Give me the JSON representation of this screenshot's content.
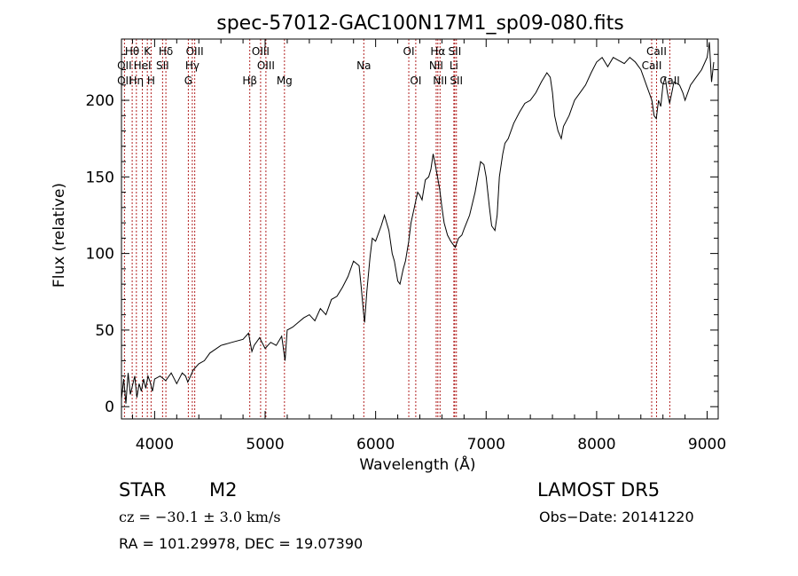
{
  "chart_data": {
    "type": "line",
    "title": "spec-57012-GAC100N17M1_sp09-080.fits",
    "xlabel": "Wavelength (Å)",
    "ylabel": "Flux (relative)",
    "xlim": [
      3700,
      9100
    ],
    "ylim": [
      -8,
      240
    ],
    "xticks": [
      4000,
      5000,
      6000,
      7000,
      8000,
      9000
    ],
    "yticks": [
      0,
      50,
      100,
      150,
      200
    ],
    "grid": false,
    "line_color": "#000000",
    "marker_color": "#b22222",
    "series": [
      {
        "x": [
          3700,
          3720,
          3740,
          3760,
          3780,
          3800,
          3820,
          3840,
          3860,
          3880,
          3900,
          3920,
          3940,
          3960,
          3980,
          4000,
          4050,
          4100,
          4150,
          4200,
          4250,
          4280,
          4300,
          4350,
          4400,
          4450,
          4500,
          4600,
          4700,
          4800,
          4850,
          4880,
          4900,
          4950,
          5000,
          5050,
          5100,
          5150,
          5180,
          5200,
          5250,
          5300,
          5350,
          5400,
          5450,
          5500,
          5550,
          5600,
          5650,
          5700,
          5750,
          5800,
          5850,
          5870,
          5890,
          5900,
          5920,
          5950,
          5970,
          6000,
          6020,
          6050,
          6080,
          6100,
          6120,
          6150,
          6170,
          6200,
          6220,
          6250,
          6270,
          6300,
          6320,
          6350,
          6380,
          6400,
          6420,
          6450,
          6480,
          6500,
          6520,
          6540,
          6560,
          6580,
          6600,
          6620,
          6650,
          6680,
          6700,
          6720,
          6750,
          6780,
          6800,
          6850,
          6900,
          6950,
          6980,
          7000,
          7030,
          7050,
          7080,
          7100,
          7120,
          7150,
          7170,
          7200,
          7250,
          7300,
          7350,
          7400,
          7450,
          7500,
          7550,
          7580,
          7600,
          7620,
          7650,
          7680,
          7700,
          7750,
          7800,
          7850,
          7900,
          7950,
          8000,
          8050,
          8100,
          8150,
          8200,
          8250,
          8300,
          8350,
          8400,
          8450,
          8500,
          8520,
          8540,
          8560,
          8580,
          8600,
          8620,
          8640,
          8660,
          8680,
          8700,
          8750,
          8780,
          8800,
          8850,
          8900,
          8950,
          9000,
          9020,
          9040,
          9060
        ],
        "y": [
          5,
          18,
          2,
          22,
          8,
          14,
          20,
          6,
          15,
          10,
          18,
          12,
          20,
          16,
          10,
          18,
          20,
          17,
          22,
          15,
          22,
          20,
          16,
          24,
          28,
          30,
          35,
          40,
          42,
          44,
          48,
          36,
          40,
          45,
          38,
          42,
          40,
          46,
          30,
          50,
          52,
          55,
          58,
          60,
          56,
          64,
          60,
          70,
          72,
          78,
          85,
          95,
          92,
          78,
          62,
          55,
          75,
          98,
          110,
          108,
          112,
          118,
          125,
          120,
          115,
          100,
          95,
          82,
          80,
          90,
          95,
          108,
          120,
          130,
          140,
          138,
          135,
          148,
          150,
          155,
          165,
          158,
          150,
          142,
          130,
          120,
          112,
          108,
          106,
          104,
          110,
          112,
          116,
          125,
          140,
          160,
          158,
          150,
          130,
          118,
          115,
          125,
          150,
          165,
          172,
          175,
          185,
          192,
          198,
          200,
          205,
          212,
          218,
          215,
          205,
          190,
          180,
          175,
          183,
          190,
          200,
          205,
          210,
          218,
          225,
          228,
          222,
          228,
          226,
          224,
          228,
          225,
          220,
          210,
          200,
          190,
          188,
          200,
          196,
          210,
          215,
          205,
          198,
          205,
          212,
          210,
          205,
          200,
          210,
          215,
          220,
          228,
          238,
          212,
          225
        ]
      }
    ],
    "line_markers": [
      {
        "label": "Hθ",
        "x": 3797,
        "row": 1
      },
      {
        "label": "OII",
        "x": 3727,
        "row": 2
      },
      {
        "label": "OII",
        "x": 3727,
        "row": 3
      },
      {
        "label": "K",
        "x": 3934,
        "row": 1
      },
      {
        "label": "HeI",
        "x": 3889,
        "row": 2
      },
      {
        "label": "Hη",
        "x": 3835,
        "row": 3
      },
      {
        "label": "Hδ",
        "x": 4102,
        "row": 1
      },
      {
        "label": "SII",
        "x": 4072,
        "row": 2
      },
      {
        "label": "H",
        "x": 3968,
        "row": 3
      },
      {
        "label": "OIII",
        "x": 4363,
        "row": 1
      },
      {
        "label": "Hγ",
        "x": 4341,
        "row": 2
      },
      {
        "label": "G",
        "x": 4305,
        "row": 3
      },
      {
        "label": "OIII",
        "x": 4959,
        "row": 1
      },
      {
        "label": "OIII",
        "x": 5007,
        "row": 2
      },
      {
        "label": "Hβ",
        "x": 4861,
        "row": 3
      },
      {
        "label": "Mg",
        "x": 5175,
        "row": 3
      },
      {
        "label": "Na",
        "x": 5893,
        "row": 2
      },
      {
        "label": "OI",
        "x": 6300,
        "row": 1
      },
      {
        "label": "OI",
        "x": 6363,
        "row": 3
      },
      {
        "label": "Hα",
        "x": 6563,
        "row": 1
      },
      {
        "label": "SII",
        "x": 6716,
        "row": 1
      },
      {
        "label": "NII",
        "x": 6548,
        "row": 2
      },
      {
        "label": "Li",
        "x": 6708,
        "row": 2
      },
      {
        "label": "NII",
        "x": 6583,
        "row": 3
      },
      {
        "label": "SII",
        "x": 6731,
        "row": 3
      },
      {
        "label": "CaII",
        "x": 8542,
        "row": 1
      },
      {
        "label": "CaII",
        "x": 8498,
        "row": 2
      },
      {
        "label": "CaII",
        "x": 8662,
        "row": 3
      }
    ]
  },
  "info": {
    "class_label": "STAR",
    "subclass": "M2",
    "survey": "LAMOST DR5",
    "cz_line": "cz = −30.1 ± 3.0 km/s",
    "obs_date": "Obs−Date: 20141220",
    "coords": "RA = 101.29978, DEC =  19.07390"
  }
}
